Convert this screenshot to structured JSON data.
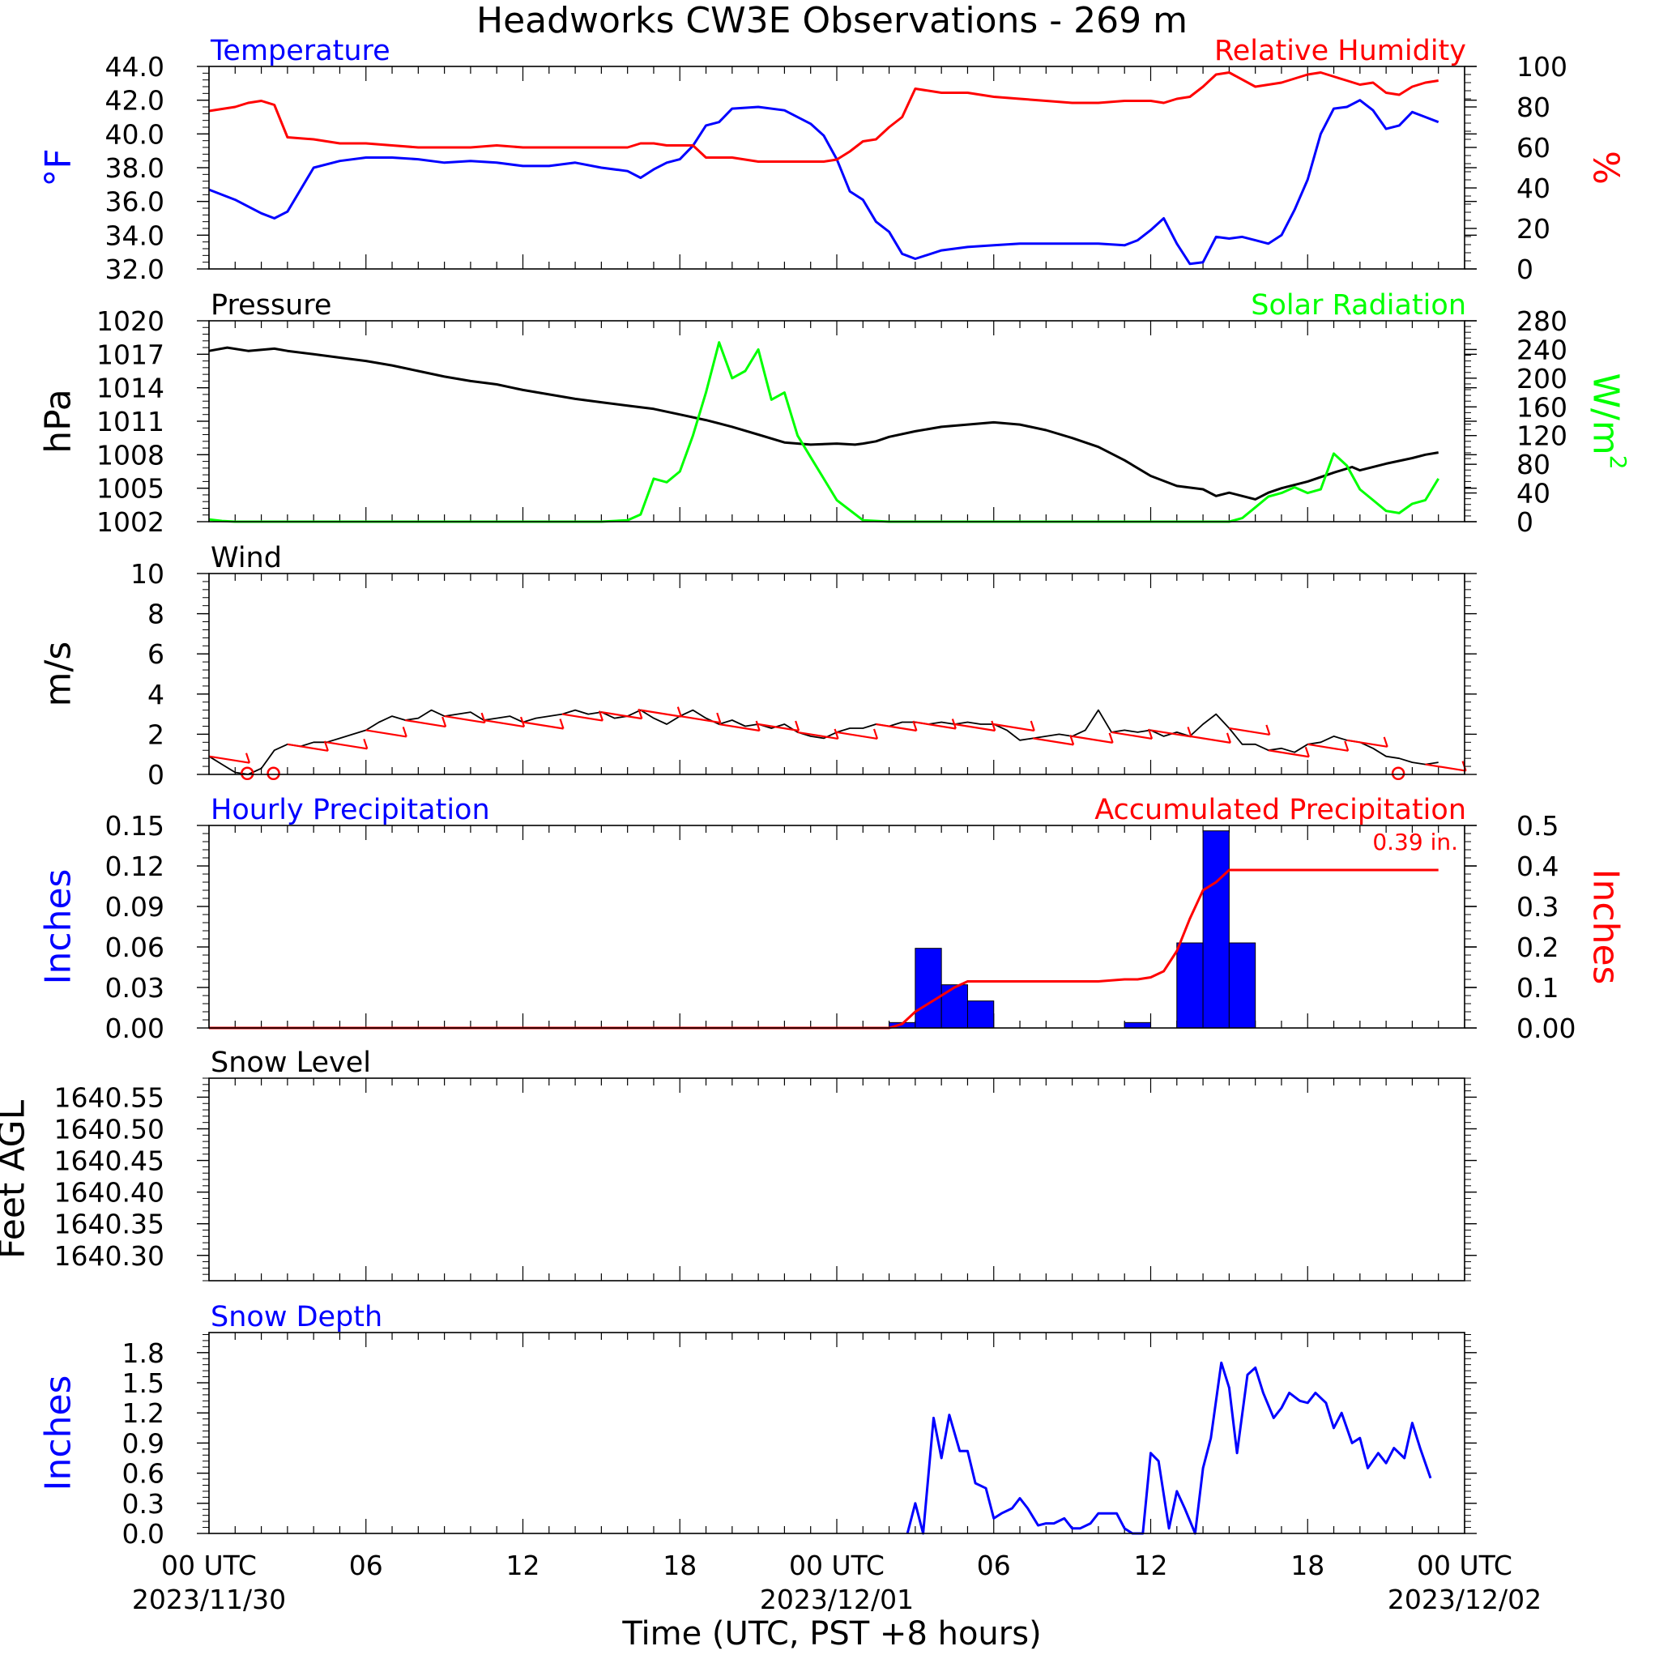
{
  "page_title": "Headworks CW3E Observations - 269 m",
  "colors": {
    "blue": "#0000ff",
    "red": "#ff0000",
    "green": "#00ff00",
    "black": "#000000"
  },
  "time_axis": {
    "title": "Time (UTC, PST +8 hours)",
    "range_hours": [
      0,
      48
    ],
    "ticks": [
      {
        "h": 0,
        "line1": "00 UTC",
        "line2": "2023/11/30"
      },
      {
        "h": 6,
        "line1": "06",
        "line2": ""
      },
      {
        "h": 12,
        "line1": "12",
        "line2": ""
      },
      {
        "h": 18,
        "line1": "18",
        "line2": ""
      },
      {
        "h": 24,
        "line1": "00 UTC",
        "line2": "2023/12/01"
      },
      {
        "h": 30,
        "line1": "06",
        "line2": ""
      },
      {
        "h": 36,
        "line1": "12",
        "line2": ""
      },
      {
        "h": 42,
        "line1": "18",
        "line2": ""
      },
      {
        "h": 48,
        "line1": "00 UTC",
        "line2": "2023/12/02"
      }
    ]
  },
  "chart_data": [
    {
      "id": "temp_rh",
      "type": "line",
      "left_title": "Temperature",
      "right_title": "Relative Humidity",
      "left_ylabel": "°F",
      "right_ylabel": "%",
      "left_ylim": [
        32,
        44
      ],
      "right_ylim": [
        0,
        100
      ],
      "left_ticks": [
        "32.0",
        "34.0",
        "36.0",
        "38.0",
        "40.0",
        "42.0",
        "44.0"
      ],
      "right_ticks": [
        "0",
        "20",
        "40",
        "60",
        "80",
        "100"
      ],
      "series": [
        {
          "name": "Temperature",
          "axis": "left",
          "color": "#0000ff",
          "x": [
            0,
            1,
            2,
            2.5,
            3,
            4,
            5,
            6,
            7,
            8,
            9,
            10,
            11,
            12,
            13,
            14,
            15,
            16,
            16.5,
            17,
            17.5,
            18,
            18.5,
            19,
            19.5,
            20,
            21,
            22,
            23,
            23.5,
            24,
            24.5,
            25,
            25.5,
            26,
            26.5,
            27,
            28,
            29,
            30,
            31,
            32,
            33,
            34,
            35,
            35.5,
            36,
            36.5,
            37,
            37.5,
            38,
            38.5,
            39,
            39.5,
            40,
            40.5,
            41,
            41.5,
            42,
            42.5,
            43,
            43.5,
            44,
            44.5,
            45,
            45.5,
            46,
            46.5,
            47
          ],
          "y": [
            36.7,
            36.1,
            35.3,
            35.0,
            35.4,
            38.0,
            38.4,
            38.6,
            38.6,
            38.5,
            38.3,
            38.4,
            38.3,
            38.1,
            38.1,
            38.3,
            38.0,
            37.8,
            37.4,
            37.9,
            38.3,
            38.5,
            39.3,
            40.5,
            40.7,
            41.5,
            41.6,
            41.4,
            40.6,
            39.9,
            38.5,
            36.6,
            36.1,
            34.8,
            34.2,
            32.9,
            32.6,
            33.1,
            33.3,
            33.4,
            33.5,
            33.5,
            33.5,
            33.5,
            33.4,
            33.7,
            34.3,
            35.0,
            33.5,
            32.3,
            32.4,
            33.9,
            33.8,
            33.9,
            33.7,
            33.5,
            34.0,
            35.5,
            37.3,
            40.0,
            41.5,
            41.6,
            42.0,
            41.4,
            40.3,
            40.5,
            41.3,
            41.0,
            40.7
          ]
        },
        {
          "name": "Relative Humidity",
          "axis": "right",
          "color": "#ff0000",
          "x": [
            0,
            1,
            1.5,
            2,
            2.5,
            3,
            4,
            5,
            6,
            7,
            8,
            9,
            10,
            11,
            12,
            13,
            14,
            15,
            16,
            16.5,
            17,
            17.5,
            18,
            18.5,
            19,
            20,
            21,
            22,
            23,
            23.5,
            24,
            24.5,
            25,
            25.5,
            26,
            26.5,
            27,
            28,
            29,
            30,
            31,
            32,
            33,
            34,
            35,
            36,
            36.5,
            37,
            37.5,
            38,
            38.5,
            39,
            40,
            41,
            42,
            42.5,
            43,
            43.5,
            44,
            44.5,
            45,
            45.5,
            46,
            46.5,
            47
          ],
          "y": [
            78,
            80,
            82,
            83,
            81,
            65,
            64,
            62,
            62,
            61,
            60,
            60,
            60,
            61,
            60,
            60,
            60,
            60,
            60,
            62,
            62,
            61,
            61,
            61,
            55,
            55,
            53,
            53,
            53,
            53,
            54,
            58,
            63,
            64,
            70,
            75,
            89,
            87,
            87,
            85,
            84,
            83,
            82,
            82,
            83,
            83,
            82,
            84,
            85,
            90,
            96,
            97,
            90,
            92,
            96,
            97,
            95,
            93,
            91,
            92,
            87,
            86,
            90,
            92,
            93
          ]
        }
      ]
    },
    {
      "id": "pressure_solar",
      "type": "line",
      "left_title": "Pressure",
      "right_title": "Solar Radiation",
      "left_ylabel": "hPa",
      "right_ylabel": "W/m",
      "right_ylabel_sup": "2",
      "left_ylim": [
        1002,
        1020
      ],
      "right_ylim": [
        0,
        280
      ],
      "left_ticks": [
        "1002",
        "1005",
        "1008",
        "1011",
        "1014",
        "1017",
        "1020"
      ],
      "right_ticks": [
        "0",
        "40",
        "80",
        "120",
        "160",
        "200",
        "240",
        "280"
      ],
      "series": [
        {
          "name": "Pressure",
          "axis": "left",
          "color": "#000000",
          "x": [
            0,
            0.7,
            1.5,
            2.5,
            3,
            4,
            5,
            6,
            7,
            8,
            9,
            10,
            11,
            12,
            13,
            14,
            15,
            16,
            17,
            18,
            19,
            20,
            21,
            22,
            23,
            24,
            24.7,
            25,
            25.5,
            26,
            27,
            28,
            29,
            30,
            31,
            32,
            33,
            34,
            35,
            36,
            37,
            38,
            38.5,
            39,
            39.5,
            40,
            40.5,
            41,
            42,
            43,
            43.7,
            44,
            45,
            46,
            46.5,
            47
          ],
          "y": [
            1017.3,
            1017.6,
            1017.3,
            1017.5,
            1017.3,
            1017.0,
            1016.7,
            1016.4,
            1016.0,
            1015.5,
            1015.0,
            1014.6,
            1014.3,
            1013.8,
            1013.4,
            1013.0,
            1012.7,
            1012.4,
            1012.1,
            1011.6,
            1011.1,
            1010.5,
            1009.8,
            1009.1,
            1008.9,
            1009.0,
            1008.9,
            1009.0,
            1009.2,
            1009.6,
            1010.1,
            1010.5,
            1010.7,
            1010.9,
            1010.7,
            1010.2,
            1009.5,
            1008.7,
            1007.5,
            1006.1,
            1005.2,
            1004.9,
            1004.3,
            1004.6,
            1004.3,
            1004.0,
            1004.6,
            1005.0,
            1005.6,
            1006.4,
            1006.9,
            1006.6,
            1007.2,
            1007.7,
            1008.0,
            1008.2
          ]
        },
        {
          "name": "Solar Radiation",
          "axis": "right",
          "color": "#00ff00",
          "x": [
            0,
            0.5,
            1,
            15,
            16,
            16.5,
            17,
            17.5,
            18,
            18.5,
            19,
            19.5,
            20,
            20.5,
            21,
            21.5,
            22,
            22.5,
            23,
            23.5,
            24,
            25,
            26,
            30,
            35,
            38,
            39,
            39.5,
            40,
            40.5,
            41,
            41.5,
            42,
            42.5,
            43,
            43.5,
            44,
            44.5,
            45,
            45.5,
            46,
            46.5,
            47
          ],
          "y": [
            3,
            1,
            0,
            0,
            2,
            10,
            60,
            55,
            70,
            120,
            180,
            250,
            200,
            210,
            240,
            170,
            180,
            120,
            90,
            60,
            30,
            2,
            0,
            0,
            0,
            0,
            0,
            5,
            20,
            35,
            40,
            48,
            40,
            45,
            95,
            78,
            45,
            30,
            15,
            12,
            25,
            30,
            60
          ]
        }
      ]
    },
    {
      "id": "wind",
      "type": "line",
      "left_title": "Wind",
      "left_ylabel": "m/s",
      "left_ylim": [
        0,
        10
      ],
      "left_ticks": [
        "0",
        "2",
        "4",
        "6",
        "8",
        "10"
      ],
      "series": [
        {
          "name": "Wind",
          "axis": "left",
          "color": "#000000",
          "x": [
            0,
            0.5,
            1,
            1.5,
            2,
            2.5,
            3,
            3.5,
            4,
            4.5,
            5,
            5.5,
            6,
            6.5,
            7,
            7.5,
            8,
            8.5,
            9,
            9.5,
            10,
            10.5,
            11,
            11.5,
            12,
            12.5,
            13,
            13.5,
            14,
            14.5,
            15,
            15.5,
            16,
            16.5,
            17,
            17.5,
            18,
            18.5,
            19,
            19.5,
            20,
            20.5,
            21,
            21.5,
            22,
            22.5,
            23,
            23.5,
            24,
            24.5,
            25,
            25.5,
            26,
            26.5,
            27,
            27.5,
            28,
            28.5,
            29,
            29.5,
            30,
            30.5,
            31,
            31.5,
            32,
            32.5,
            33,
            33.5,
            34,
            34.5,
            35,
            35.5,
            36,
            36.5,
            37,
            37.5,
            38,
            38.5,
            39,
            39.5,
            40,
            40.5,
            41,
            41.5,
            42,
            42.5,
            43,
            43.5,
            44,
            44.5,
            45,
            45.5,
            46,
            46.5,
            47
          ],
          "y": [
            0.9,
            0.5,
            0.1,
            0.0,
            0.3,
            1.2,
            1.5,
            1.4,
            1.6,
            1.6,
            1.8,
            2.0,
            2.2,
            2.6,
            2.9,
            2.7,
            2.8,
            3.2,
            2.9,
            3.0,
            3.1,
            2.7,
            2.8,
            2.9,
            2.6,
            2.8,
            2.9,
            3.0,
            3.2,
            3.0,
            3.1,
            2.8,
            2.9,
            3.2,
            2.8,
            2.5,
            2.9,
            3.2,
            2.8,
            2.5,
            2.7,
            2.4,
            2.5,
            2.3,
            2.5,
            2.1,
            1.9,
            1.8,
            2.1,
            2.3,
            2.3,
            2.5,
            2.4,
            2.6,
            2.6,
            2.5,
            2.6,
            2.5,
            2.6,
            2.5,
            2.5,
            2.2,
            1.7,
            1.8,
            1.9,
            2.0,
            1.9,
            2.2,
            3.2,
            2.1,
            2.2,
            2.1,
            2.2,
            1.9,
            2.1,
            1.9,
            2.5,
            3.0,
            2.3,
            1.5,
            1.5,
            1.2,
            1.3,
            1.1,
            1.5,
            1.6,
            1.9,
            1.7,
            1.6,
            1.3,
            0.9,
            0.8,
            0.6,
            0.5,
            0.6
          ]
        }
      ],
      "barbs": [
        {
          "h": 1.0,
          "calm": true
        },
        {
          "h": 2.0,
          "calm": true
        },
        {
          "h": 45.0,
          "calm": true
        }
      ]
    },
    {
      "id": "precip",
      "type": "bar",
      "left_title": "Hourly Precipitation",
      "right_title": "Accumulated Precipitation",
      "total_label": "0.39 in.",
      "left_ylabel": "Inches",
      "right_ylabel": "Inches",
      "left_ylim": [
        0,
        0.15
      ],
      "right_ylim": [
        0,
        0.5
      ],
      "left_ticks": [
        "0.00",
        "0.03",
        "0.06",
        "0.09",
        "0.12",
        "0.15"
      ],
      "right_ticks": [
        "0.00",
        "0.1",
        "0.2",
        "0.3",
        "0.4",
        "0.5"
      ],
      "bars": {
        "name": "Hourly Precipitation",
        "color": "#0000ff",
        "hours": [
          26,
          27,
          28,
          29,
          35,
          37,
          38,
          39
        ],
        "values": [
          0.004,
          0.059,
          0.032,
          0.02,
          0.004,
          0.063,
          0.146,
          0.063
        ]
      },
      "accum": {
        "name": "Accumulated Precipitation",
        "color": "#ff0000",
        "x": [
          0,
          26,
          26.5,
          27,
          27.5,
          28,
          28.5,
          29,
          29.5,
          30,
          34,
          35,
          35.5,
          36,
          36.5,
          37,
          37.5,
          38,
          38.5,
          39,
          39.5,
          40,
          47
        ],
        "y": [
          0,
          0,
          0.01,
          0.04,
          0.06,
          0.08,
          0.1,
          0.115,
          0.115,
          0.115,
          0.115,
          0.12,
          0.12,
          0.125,
          0.14,
          0.19,
          0.27,
          0.34,
          0.36,
          0.39,
          0.39,
          0.39,
          0.39
        ]
      }
    },
    {
      "id": "snow_level",
      "type": "line",
      "left_title": "Snow Level",
      "left_ylabel": "Feet AGL",
      "left_ylim": [
        1640.26,
        1640.58
      ],
      "left_ticks": [
        "1640.30",
        "1640.35",
        "1640.40",
        "1640.45",
        "1640.50",
        "1640.55"
      ],
      "series": []
    },
    {
      "id": "snow_depth",
      "type": "line",
      "left_title": "Snow Depth",
      "left_ylabel": "Inches",
      "left_ylim": [
        0,
        2.0
      ],
      "left_ticks": [
        "0.0",
        "0.3",
        "0.6",
        "0.9",
        "1.2",
        "1.5",
        "1.8"
      ],
      "series": [
        {
          "name": "Snow Depth",
          "axis": "left",
          "color": "#0000ff",
          "x": [
            26.7,
            27,
            27.3,
            27.7,
            28,
            28.3,
            28.7,
            29,
            29.3,
            29.7,
            30,
            30.3,
            30.7,
            31,
            31.3,
            31.7,
            32,
            32.3,
            32.7,
            33,
            33.3,
            33.7,
            34,
            34.3,
            34.7,
            35,
            35.3,
            35.7,
            36,
            36.3,
            36.7,
            37,
            37.3,
            37.7,
            38,
            38.3,
            38.7,
            39,
            39.3,
            39.7,
            40,
            40.3,
            40.7,
            41,
            41.3,
            41.7,
            42,
            42.3,
            42.7,
            43,
            43.3,
            43.7,
            44,
            44.3,
            44.7,
            45,
            45.3,
            45.7,
            46,
            46.3,
            46.7
          ],
          "y": [
            0,
            0.3,
            0,
            1.15,
            0.75,
            1.18,
            0.82,
            0.82,
            0.5,
            0.45,
            0.15,
            0.2,
            0.25,
            0.35,
            0.25,
            0.08,
            0.1,
            0.1,
            0.15,
            0.05,
            0.05,
            0.1,
            0.2,
            0.2,
            0.2,
            0.05,
            0,
            0,
            0.8,
            0.72,
            0.05,
            0.42,
            0.25,
            0,
            0.65,
            0.95,
            1.7,
            1.45,
            0.8,
            1.58,
            1.65,
            1.4,
            1.15,
            1.25,
            1.4,
            1.32,
            1.3,
            1.4,
            1.3,
            1.05,
            1.2,
            0.9,
            0.95,
            0.65,
            0.8,
            0.7,
            0.85,
            0.75,
            1.1,
            0.85,
            0.55
          ]
        }
      ]
    }
  ]
}
